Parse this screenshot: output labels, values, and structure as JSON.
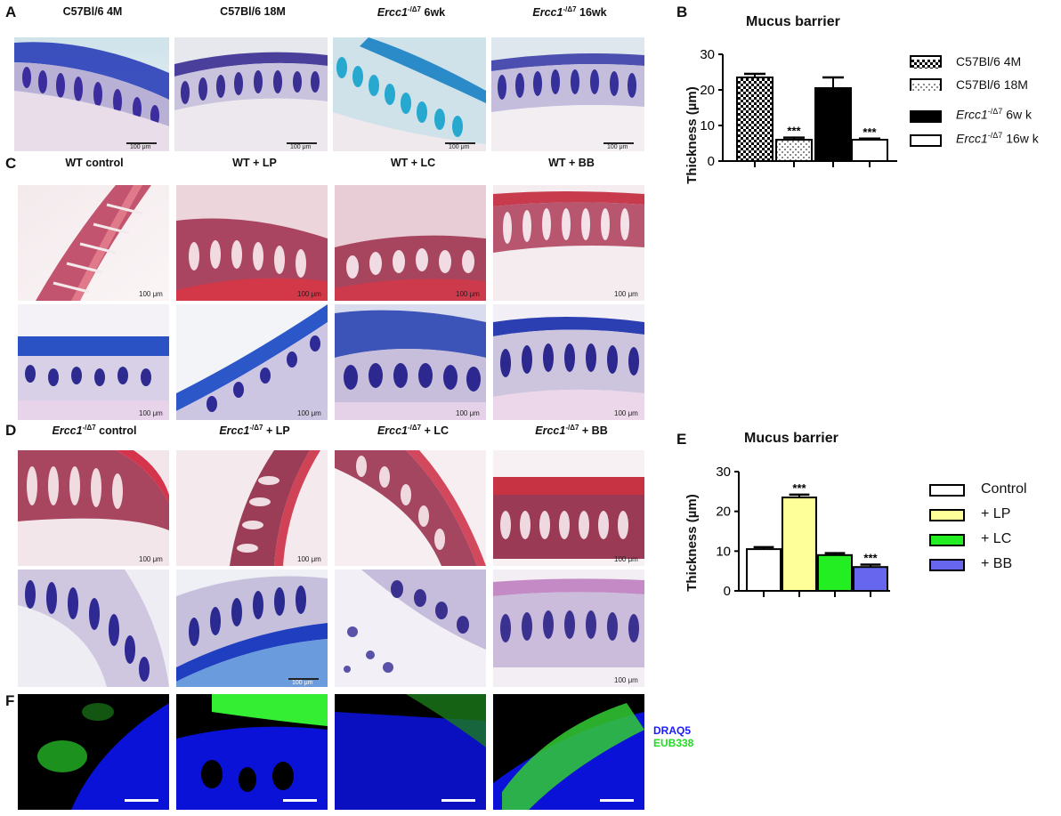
{
  "panels": {
    "A": "A",
    "B": "B",
    "C": "C",
    "D": "D",
    "E": "E",
    "F": "F"
  },
  "row_a_titles": [
    {
      "main": "C57Bl/6 4M",
      "sup": "",
      "suffix": ""
    },
    {
      "main": "C57Bl/6 18M",
      "sup": "",
      "suffix": ""
    },
    {
      "main": "Ercc1",
      "sup": "-/Δ7",
      "suffix": " 6wk"
    },
    {
      "main": "Ercc1",
      "sup": "-/Δ7",
      "suffix": " 16wk"
    }
  ],
  "row_c_titles": [
    "WT control",
    "WT + LP",
    "WT + LC",
    "WT + BB"
  ],
  "row_d_titles": [
    {
      "main": "Ercc1",
      "sup": "-/Δ7",
      "suffix": " control"
    },
    {
      "main": "Ercc1",
      "sup": "-/Δ7",
      "suffix": " + LP"
    },
    {
      "main": "Ercc1",
      "sup": "-/Δ7",
      "suffix": " + LC"
    },
    {
      "main": "Ercc1",
      "sup": "-/Δ7",
      "suffix": " + BB"
    }
  ],
  "scale_label": "100 μm",
  "scale_label_small": "100 μm",
  "fluor_legend": {
    "draq5": "DRAQ5",
    "eub338": "EUB338",
    "draq5_color": "#1a1aff",
    "eub338_color": "#22dd22"
  },
  "colors": {
    "mucus_blue": "#3a4fc6",
    "he_pink": "#c0506a",
    "fluor_blue": "#0a10e0",
    "fluor_green": "#33ee33",
    "bar_black": "#000000",
    "lp_yellow": "#ffff99",
    "lc_green": "#22ee22",
    "bb_blue": "#6666ee"
  },
  "chart_data": [
    {
      "type": "bar",
      "title": "Mucus barrier",
      "ylabel": "Thickness (µm)",
      "ylim": [
        0,
        30
      ],
      "yticks": [
        0,
        10,
        20,
        30
      ],
      "categories": [
        "C57Bl/6 4M",
        "C57Bl/6 18M",
        "Ercc1-/Δ7 6wk",
        "Ercc1-/Δ7 16wk"
      ],
      "values": [
        23.5,
        6,
        20.5,
        6
      ],
      "errors": [
        1.0,
        0.6,
        3.0,
        0.3
      ],
      "significance": [
        "",
        "***",
        "",
        "***"
      ],
      "legend": [
        {
          "main": "C57Bl/6 4M",
          "sup": "",
          "suffix": "",
          "style": "checker"
        },
        {
          "main": "C57Bl/6 18M",
          "sup": "",
          "suffix": "",
          "style": "dotted"
        },
        {
          "main": "Ercc1",
          "sup": "-/Δ7",
          "suffix": " 6w k",
          "style": "black"
        },
        {
          "main": "Ercc1",
          "sup": "-/Δ7",
          "suffix": " 16w k",
          "style": "white"
        }
      ],
      "legend_position": "right"
    },
    {
      "type": "bar",
      "title": "Mucus barrier",
      "ylabel": "Thickness (µm)",
      "ylim": [
        0,
        30
      ],
      "yticks": [
        0,
        10,
        20,
        30
      ],
      "categories": [
        "Control",
        "+ LP",
        "+ LC",
        "+ BB"
      ],
      "values": [
        10.5,
        23.5,
        9,
        6
      ],
      "errors": [
        0.5,
        0.7,
        0.5,
        0.6
      ],
      "significance": [
        "",
        "***",
        "",
        "***"
      ],
      "colors": [
        "#ffffff",
        "#ffff99",
        "#22ee22",
        "#6666ee"
      ],
      "legend": [
        "Control",
        "+ LP",
        "+ LC",
        "+ BB"
      ],
      "legend_position": "right"
    }
  ]
}
